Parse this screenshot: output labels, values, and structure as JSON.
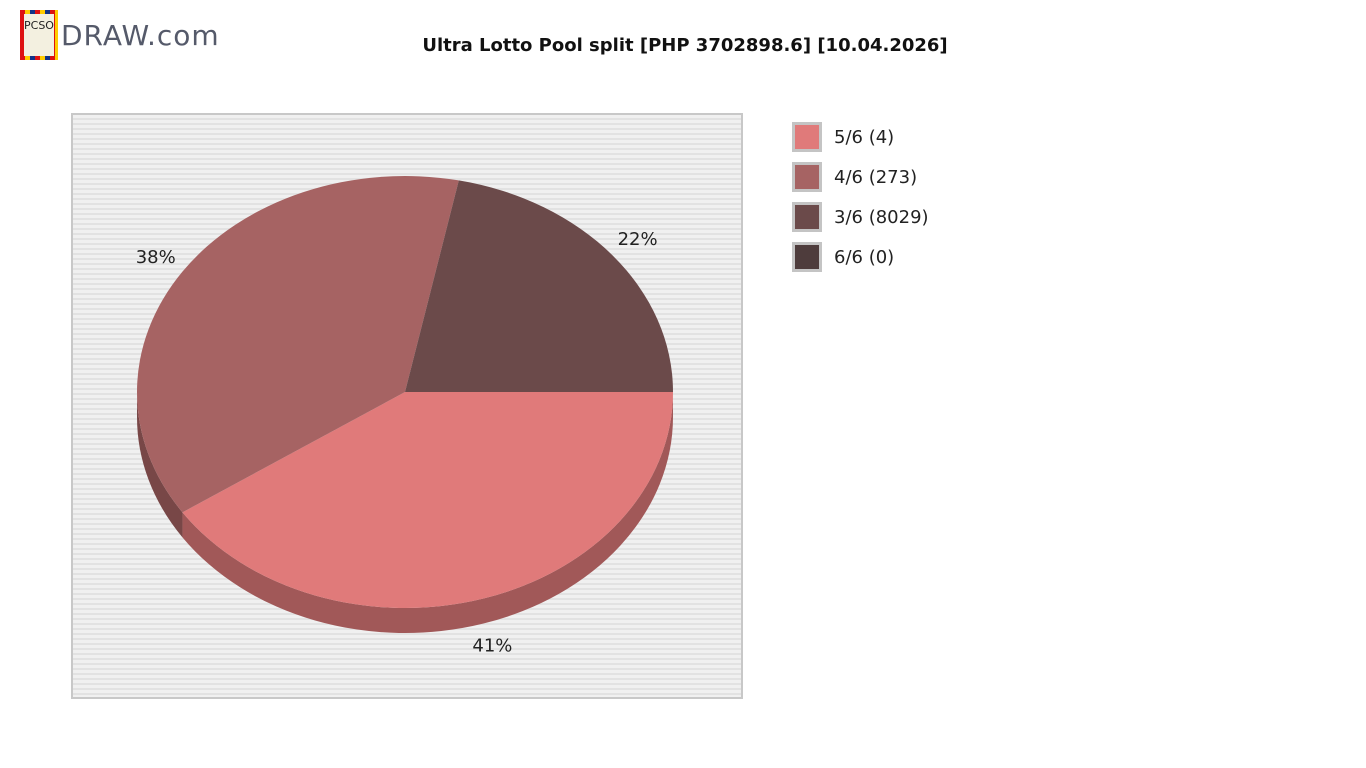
{
  "logo": {
    "box_text": "PCSO",
    "text": "DRAW.com"
  },
  "chart_data": {
    "type": "pie",
    "title": "Ultra Lotto Pool split [PHP 3702898.6] [10.04.2026]",
    "slices": [
      {
        "label": "5/6 (4)",
        "percent": 41,
        "label_text": "41%",
        "color": "#E07A7A"
      },
      {
        "label": "4/6 (273)",
        "percent": 38,
        "label_text": "38%",
        "color": "#A66363"
      },
      {
        "label": "3/6 (8029)",
        "percent": 22,
        "label_text": "22%",
        "color": "#6B4A4A"
      },
      {
        "label": "6/6 (0)",
        "percent": 0,
        "label_text": "",
        "color": "#4E3C3C"
      }
    ],
    "legend_position": "right",
    "style": "3d"
  }
}
